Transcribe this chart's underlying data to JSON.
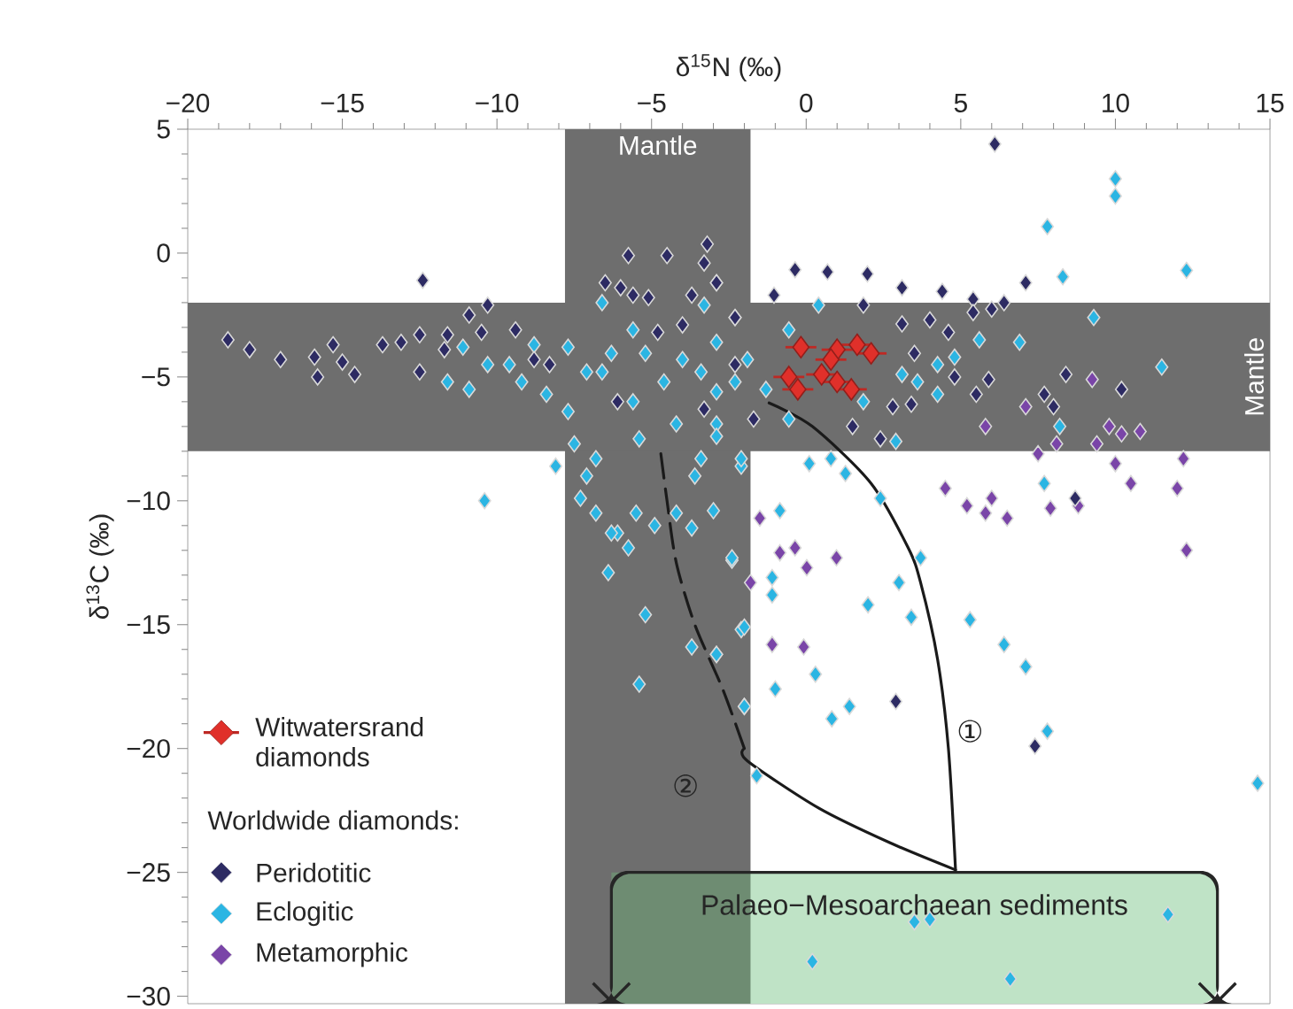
{
  "chart_data": {
    "type": "scatter",
    "xlabel": "δ$^{15}$N (‰)",
    "ylabel": "δ$^{13}$C (‰)",
    "legend_title": "Worldwide diamonds:",
    "legend": "bottom left",
    "marker": "diamond",
    "xlim": [
      -20,
      15
    ],
    "ylim": [
      -30.3,
      5
    ],
    "xticks": [
      {
        "value": -20,
        "label": "−20"
      },
      {
        "value": -15,
        "label": "−15"
      },
      {
        "value": -10,
        "label": "−10"
      },
      {
        "value": -5,
        "label": "−5"
      },
      0,
      5,
      10,
      15
    ],
    "yticks": [
      5,
      0,
      {
        "value": -5,
        "label": "−5"
      },
      {
        "value": -10,
        "label": "−10"
      },
      {
        "value": -15,
        "label": "−15"
      },
      {
        "value": -20,
        "label": "−20"
      },
      {
        "value": -25,
        "label": "−25"
      },
      {
        "value": -30,
        "label": "−30"
      }
    ],
    "bands": [
      {
        "axis": "x",
        "from": -7.8,
        "to": -1.8,
        "label": "Mantle",
        "color": "#6e6e6e"
      },
      {
        "axis": "y",
        "from": -8,
        "to": -2,
        "label": "Mantle",
        "color": "#6e6e6e"
      }
    ],
    "annotations": [
      "Palaeo−Mesoarchaean sediments",
      "①",
      "②"
    ],
    "series": [
      {
        "name": "Witwatersrand diamonds",
        "color": "#e0302a",
        "x": [
          -0.17,
          1.0,
          1.65,
          -0.56,
          0.5,
          1.46,
          -0.27,
          1.0,
          2.1,
          0.8
        ],
        "values": [
          -3.8,
          -3.9,
          -3.7,
          -5.0,
          -4.9,
          -5.5,
          -5.5,
          -5.2,
          -4.05,
          -4.3
        ],
        "xerrors": [
          0.5,
          0.5,
          0.5,
          0.5,
          0.5,
          0.5,
          0.5,
          0.5,
          0.5,
          0.5
        ]
      },
      {
        "name": "Peridotitic",
        "color": "#2d2b63",
        "x": [
          -12.4,
          -18.7,
          -18.0,
          -17.0,
          -15.9,
          -15.3,
          -15.8,
          -15.0,
          -14.6,
          -13.7,
          -13.1,
          -12.5,
          -12.5,
          -11.6,
          -10.9,
          -10.3,
          -10.5,
          -9.4,
          -5.75,
          -4.5,
          -3.2,
          -3.3,
          -2.9,
          -6.5,
          -6.0,
          -5.6,
          -5.1,
          -3.7,
          -4.0,
          -2.3,
          -11.7,
          -8.8,
          -3.3,
          -6.1,
          -8.3,
          -4.8,
          6.1,
          -0.36,
          0.69,
          1.98,
          3.1,
          4.4,
          5.4,
          6.4,
          7.1,
          -1.04,
          1.85,
          3.1,
          4.0,
          4.6,
          5.4,
          5.9,
          5.5,
          4.8,
          3.5,
          2.8,
          3.4,
          1.5,
          2.4,
          -2.3,
          -2.9,
          -2.3,
          -1.7,
          8.4,
          10.2,
          7.7,
          8.0,
          8.7,
          6.0,
          2.9,
          7.4
        ],
        "values": [
          -1.1,
          -3.5,
          -3.9,
          -4.3,
          -4.2,
          -3.7,
          -5.0,
          -4.4,
          -4.9,
          -3.7,
          -3.6,
          -3.3,
          -4.8,
          -3.3,
          -2.5,
          -2.1,
          -3.2,
          -3.1,
          -0.1,
          -0.1,
          0.36,
          -0.4,
          -1.2,
          -1.2,
          -1.4,
          -1.7,
          -1.8,
          -1.7,
          -2.9,
          -2.6,
          -3.9,
          -4.3,
          -6.3,
          -6.0,
          -4.5,
          -3.2,
          4.4,
          -0.67,
          -0.76,
          -0.84,
          -1.4,
          -1.55,
          -1.86,
          -2.0,
          -1.2,
          -1.7,
          -2.1,
          -2.86,
          -2.7,
          -3.2,
          -2.4,
          -5.1,
          -5.7,
          -5.0,
          -4.05,
          -6.2,
          -6.1,
          -7.0,
          -7.5,
          -2.6,
          -1.2,
          -4.5,
          -6.7,
          -4.9,
          -5.5,
          -5.7,
          -6.2,
          -9.9,
          -2.26,
          -18.1,
          -19.9
        ]
      },
      {
        "name": "Eclogitic",
        "color": "#2bb5e3",
        "x": [
          -10.4,
          -11.6,
          -10.9,
          -11.1,
          -10.3,
          -9.6,
          -8.8,
          -9.2,
          -8.4,
          -7.7,
          -7.7,
          -7.1,
          -6.6,
          -6.3,
          -6.6,
          -5.6,
          -5.2,
          -5.6,
          -5.4,
          -4.6,
          -4.0,
          -4.2,
          -3.3,
          -3.4,
          -2.9,
          -2.9,
          -2.3,
          -7.5,
          -8.1,
          -6.8,
          -7.1,
          -7.3,
          -6.8,
          -6.1,
          -5.5,
          -4.9,
          -4.2,
          -3.0,
          -3.6,
          -3.4,
          -2.9,
          -2.1,
          -3.7,
          -6.3,
          -5.75,
          -6.4,
          -5.2,
          -3.7,
          -2.9,
          -5.4,
          -2.4,
          -2.1,
          -2.0,
          10.0,
          10.0,
          7.8,
          12.3,
          8.3,
          9.3,
          11.5,
          0.4,
          -0.56,
          6.9,
          5.6,
          4.25,
          3.1,
          3.6,
          4.25,
          4.8,
          8.2,
          1.85,
          2.9,
          0.1,
          0.8,
          1.27,
          2.4,
          -0.85,
          -2.1,
          -2.9,
          -1.9,
          -1.3,
          -0.56,
          7.7,
          3.7,
          3.0,
          2.0,
          3.4,
          -1.1,
          -1.1,
          -2.4,
          -2.0,
          -2.9,
          0.3,
          -1.0,
          -2.0,
          1.4,
          0.83,
          -1.6,
          5.3,
          6.4,
          7.1,
          7.8,
          14.6,
          11.7,
          3.5,
          4.0,
          0.2,
          6.6
        ],
        "values": [
          -10.0,
          -5.2,
          -5.5,
          -3.8,
          -4.5,
          -4.5,
          -3.7,
          -5.2,
          -5.7,
          -3.8,
          -6.4,
          -4.8,
          -2.0,
          -4.05,
          -4.8,
          -3.1,
          -4.05,
          -6.0,
          -7.5,
          -5.2,
          -4.3,
          -6.9,
          -2.1,
          -4.8,
          -3.6,
          -6.9,
          -5.2,
          -7.7,
          -8.6,
          -8.3,
          -9.0,
          -9.9,
          -10.5,
          -11.3,
          -10.5,
          -11.0,
          -10.5,
          -10.4,
          -9.0,
          -8.3,
          -7.4,
          -8.6,
          -11.1,
          -11.3,
          -11.9,
          -12.9,
          -14.6,
          -15.9,
          -16.2,
          -17.4,
          -12.4,
          -15.2,
          -18.3,
          3.0,
          2.3,
          1.07,
          -0.7,
          -0.96,
          -2.6,
          -4.6,
          -2.1,
          -3.1,
          -3.6,
          -3.5,
          -4.5,
          -4.9,
          -5.2,
          -5.7,
          -4.2,
          -7.0,
          -6.0,
          -7.6,
          -8.5,
          -8.3,
          -8.9,
          -9.9,
          -10.4,
          -8.3,
          -5.6,
          -4.3,
          -5.5,
          -6.7,
          -9.3,
          -12.3,
          -13.3,
          -14.2,
          -14.7,
          -13.1,
          -13.8,
          -12.3,
          -15.1,
          -16.2,
          -17.0,
          -17.6,
          -18.3,
          -18.3,
          -18.8,
          -21.1,
          -14.8,
          -15.8,
          -16.7,
          -19.3,
          -21.4,
          -26.7,
          -27.0,
          -26.9,
          -28.6,
          -29.3
        ]
      },
      {
        "name": "Metamorphic",
        "color": "#7a45a8",
        "x": [
          9.25,
          5.8,
          7.1,
          7.5,
          8.1,
          9.8,
          10.2,
          10.8,
          9.4,
          10.0,
          10.5,
          12.2,
          12.0,
          4.5,
          5.2,
          5.8,
          6.5,
          7.9,
          8.8,
          6.0,
          -1.5,
          12.3,
          -0.85,
          -0.36,
          0.02,
          0.98,
          -1.8,
          -1.1,
          -0.08
        ],
        "values": [
          -5.1,
          -7.0,
          -6.2,
          -8.1,
          -7.7,
          -7.0,
          -7.3,
          -7.2,
          -7.7,
          -8.5,
          -9.3,
          -8.3,
          -9.5,
          -9.5,
          -10.2,
          -10.5,
          -10.7,
          -10.3,
          -10.2,
          -9.9,
          -10.7,
          -12.0,
          -12.1,
          -11.9,
          -12.7,
          -12.3,
          -13.3,
          -15.8,
          -15.9
        ]
      },
      {
        "type": "line",
        "color": "#1a1a1a",
        "marker": "none",
        "line_style": "solid",
        "x": [
          -1.2,
          0.2,
          2.1,
          3.3,
          3.7,
          4.25,
          4.6,
          4.83
        ],
        "values": [
          -6.05,
          -7.0,
          -9.3,
          -11.9,
          -13.3,
          -16.4,
          -20,
          -24.9
        ]
      },
      {
        "type": "line",
        "color": "#1a1a1a",
        "marker": "none",
        "line_style": "solid",
        "x": [
          -2.0,
          -1.9,
          0.4,
          2.7,
          4.83
        ],
        "values": [
          -20,
          -20.5,
          -22.4,
          -23.8,
          -24.9
        ]
      },
      {
        "type": "line",
        "color": "#1a1a1a",
        "marker": "none",
        "line_style": "dashed",
        "x": [
          -4.7,
          -4.5,
          -4.2,
          -3.6,
          -2.7,
          -2.0
        ],
        "values": [
          -8.1,
          -10,
          -12.5,
          -15,
          -17.6,
          -20
        ]
      }
    ]
  }
}
